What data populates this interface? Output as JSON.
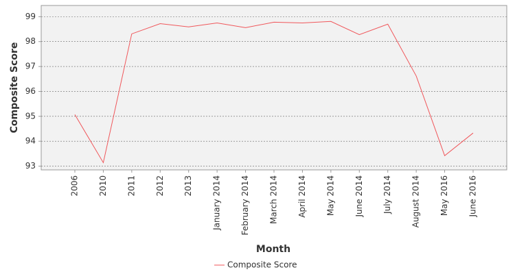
{
  "chart_data": {
    "type": "line",
    "x_label": "Month",
    "y_label": "Composite Score",
    "categories": [
      "2006",
      "2010",
      "2011",
      "2012",
      "2013",
      "January 2014",
      "February 2014",
      "March 2014",
      "April 2014",
      "May 2014",
      "June 2014",
      "July 2014",
      "August 2014",
      "May 2016",
      "June 2016"
    ],
    "series": [
      {
        "name": "Composite Score",
        "color": "#f0565a",
        "values": [
          95.07,
          93.14,
          98.31,
          98.72,
          98.59,
          98.75,
          98.56,
          98.78,
          98.75,
          98.81,
          98.28,
          98.7,
          96.62,
          93.42,
          94.33
        ]
      }
    ],
    "ylim": [
      92.85,
      99.45
    ],
    "yticks": [
      93,
      94,
      95,
      96,
      97,
      98,
      99
    ],
    "grid": true,
    "legend": "bottom"
  }
}
